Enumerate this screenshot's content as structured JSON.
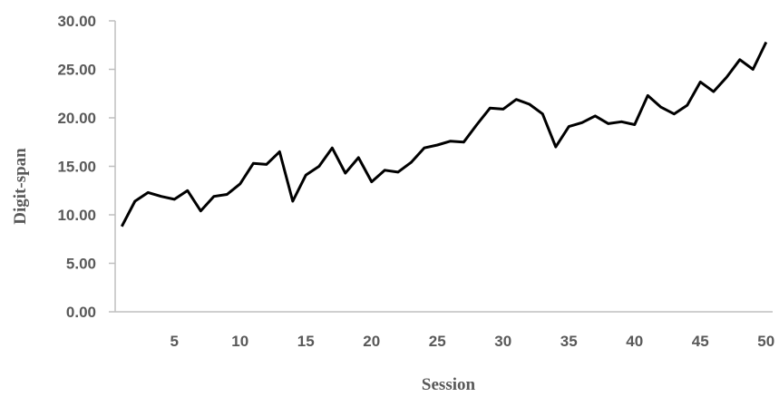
{
  "chart_data": {
    "type": "line",
    "title": "",
    "xlabel": "Session",
    "ylabel": "Digit-span",
    "xlim": [
      0.5,
      50.5
    ],
    "ylim": [
      0,
      30
    ],
    "x_ticks": [
      5,
      10,
      15,
      20,
      25,
      30,
      35,
      40,
      45,
      50
    ],
    "y_ticks": [
      "0.00",
      "5.00",
      "10.00",
      "15.00",
      "20.00",
      "25.00",
      "30.00"
    ],
    "grid": false,
    "legend": "none",
    "line_color": "#000000",
    "series": [
      {
        "x": [
          1,
          2,
          3,
          4,
          5,
          6,
          7,
          8,
          9,
          10,
          11,
          12,
          13,
          14,
          15,
          16,
          17,
          18,
          19,
          20,
          21,
          22,
          23,
          24,
          25,
          26,
          27,
          28,
          29,
          30,
          31,
          32,
          33,
          34,
          35,
          36,
          37,
          38,
          39,
          40,
          41,
          42,
          43,
          44,
          45,
          46,
          47,
          48,
          49,
          50
        ],
        "values": [
          8.8,
          11.4,
          12.3,
          11.9,
          11.6,
          12.5,
          10.4,
          11.9,
          12.1,
          13.2,
          15.3,
          15.2,
          16.5,
          11.4,
          14.1,
          15.0,
          16.9,
          14.3,
          15.9,
          13.4,
          14.6,
          14.4,
          15.4,
          16.9,
          17.2,
          17.6,
          17.5,
          19.3,
          21.0,
          20.9,
          21.9,
          21.4,
          20.4,
          17.0,
          19.1,
          19.5,
          20.2,
          19.4,
          19.6,
          19.3,
          22.3,
          21.1,
          20.4,
          21.3,
          23.7,
          22.7,
          24.2,
          26.0,
          25.0,
          27.8
        ]
      }
    ]
  }
}
